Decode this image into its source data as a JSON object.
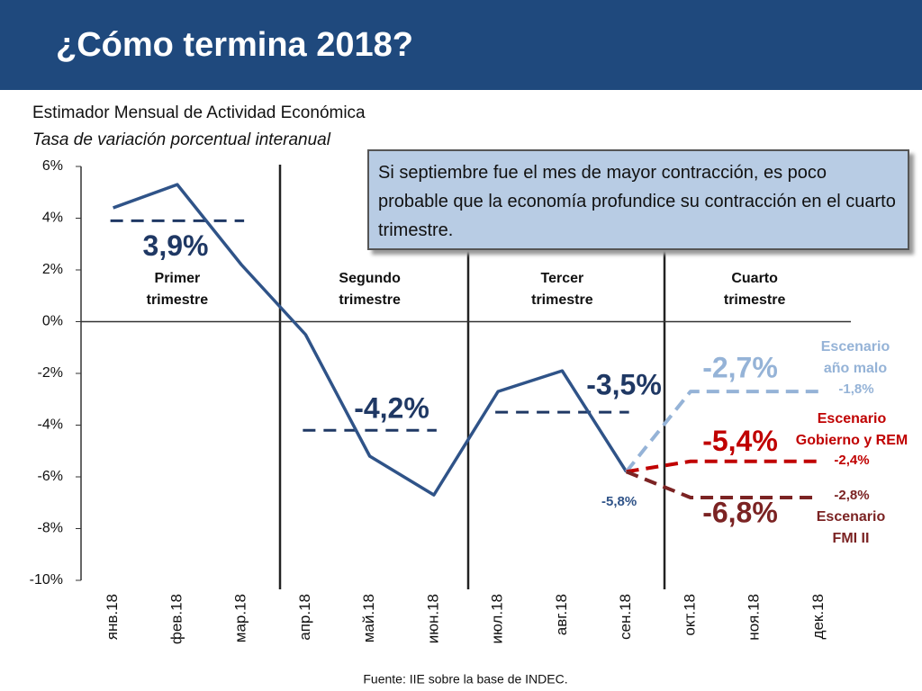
{
  "header": {
    "title": "¿Cómo termina 2018?"
  },
  "chart_data": {
    "type": "line",
    "title": "Estimador Mensual de Actividad Económica",
    "subtitle": "Tasa de variación porcentual interanual",
    "categories": [
      "янв.18",
      "фев.18",
      "мар.18",
      "апр.18",
      "май.18",
      "июн.18",
      "июл.18",
      "авг.18",
      "сен.18",
      "окт.18",
      "ноя.18",
      "дек.18"
    ],
    "ylim": [
      -10,
      6
    ],
    "yticks": [
      {
        "value": 6,
        "label": "6%"
      },
      {
        "value": 4,
        "label": "4%"
      },
      {
        "value": 2,
        "label": "2%"
      },
      {
        "value": 0,
        "label": "0%"
      },
      {
        "value": -2,
        "label": "-2%"
      },
      {
        "value": -4,
        "label": "-4%"
      },
      {
        "value": -6,
        "label": "-6%"
      },
      {
        "value": -8,
        "label": "-8%"
      },
      {
        "value": -10,
        "label": "-10%"
      }
    ],
    "series": [
      {
        "color": "#2f5388",
        "values": [
          4.4,
          5.3,
          2.2,
          -0.5,
          -5.2,
          -6.7,
          -2.7,
          -1.9,
          -5.8,
          null,
          null,
          null
        ],
        "value_labels": [
          null,
          null,
          null,
          null,
          null,
          null,
          null,
          null,
          "-5,8%",
          null,
          null,
          null
        ]
      },
      {
        "name": "Escenario año malo",
        "color": "#95b3d7",
        "values": [
          null,
          null,
          null,
          null,
          null,
          null,
          null,
          null,
          -5.8,
          -2.7,
          -2.7,
          -2.7
        ],
        "q4_value": -2.7,
        "q4_label": "-2,7%",
        "annual": {
          "value": -1.8,
          "label": "-1,8%"
        }
      },
      {
        "name": "Escenario Gobierno y REM",
        "color": "#c00000",
        "values": [
          null,
          null,
          null,
          null,
          null,
          null,
          null,
          null,
          -5.8,
          -5.4,
          -5.4,
          -5.4
        ],
        "q4_value": -5.4,
        "q4_label": "-5,4%",
        "annual": {
          "value": -2.4,
          "label": "-2,4%"
        }
      },
      {
        "name": "Escenario FMI II",
        "color": "#7b2323",
        "values": [
          null,
          null,
          null,
          null,
          null,
          null,
          null,
          null,
          -5.8,
          -6.8,
          -6.8,
          -6.8
        ],
        "q4_value": -6.8,
        "q4_label": "-6,8%",
        "annual": {
          "value": -2.8,
          "label": "-2,8%"
        }
      }
    ],
    "quarters": [
      {
        "name": "Primer trimestre",
        "value": 3.9,
        "label": "3,9%"
      },
      {
        "name": "Segundo trimestre",
        "value": -4.2,
        "label": "-4,2%"
      },
      {
        "name": "Tercer trimestre",
        "value": -3.5,
        "label": "-3,5%"
      },
      {
        "name": "Cuarto trimestre"
      }
    ],
    "annotation": "Si septiembre fue el mes de mayor contracción, es poco probable que la economía profundice su contracción en el cuarto trimestre.",
    "source": "Fuente: IIE sobre la base de INDEC."
  }
}
